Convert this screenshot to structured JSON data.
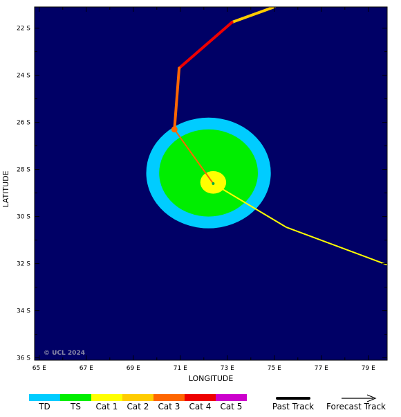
{
  "map": {
    "xlabel": "LONGITUDE",
    "ylabel": "LATITUDE",
    "copyright": "© UCL 2024",
    "background_color": "#000066",
    "lon_range": [
      64.8,
      79.8
    ],
    "lat_range": [
      -21.1,
      -36.1
    ],
    "lon_ticks": [
      {
        "value": 65,
        "label": "65 E"
      },
      {
        "value": 67,
        "label": "67 E"
      },
      {
        "value": 69,
        "label": "69 E"
      },
      {
        "value": 71,
        "label": "71 E"
      },
      {
        "value": 73,
        "label": "73 E"
      },
      {
        "value": 75,
        "label": "75 E"
      },
      {
        "value": 77,
        "label": "77 E"
      },
      {
        "value": 79,
        "label": "79 E"
      }
    ],
    "lat_ticks": [
      {
        "value": -22,
        "label": "22 S"
      },
      {
        "value": -24,
        "label": "24 S"
      },
      {
        "value": -26,
        "label": "26 S"
      },
      {
        "value": -28,
        "label": "28 S"
      },
      {
        "value": -30,
        "label": "30 S"
      },
      {
        "value": -32,
        "label": "32 S"
      },
      {
        "value": -34,
        "label": "34 S"
      },
      {
        "value": -36,
        "label": "36 S"
      }
    ]
  },
  "wind_field": {
    "center": {
      "lon": 72.2,
      "lat": -28.15
    },
    "zones": [
      {
        "category": "TD",
        "color": "#00ccff",
        "r_lon": 2.65,
        "r_lat": 2.35
      },
      {
        "category": "TS",
        "color": "#00ee00",
        "r_lon": 2.1,
        "r_lat": 1.85
      },
      {
        "category": "Cat 1",
        "color": "#ffff00",
        "r_lon": 0.55,
        "r_lat": 0.48,
        "center": {
          "lon": 72.4,
          "lat": -28.55
        }
      }
    ]
  },
  "past_track": [
    {
      "from": {
        "lon": 75.0,
        "lat": -21.1
      },
      "to": {
        "lon": 73.2,
        "lat": -21.75
      },
      "category": "Cat 2",
      "color": "#ffcc00"
    },
    {
      "from": {
        "lon": 73.2,
        "lat": -21.75
      },
      "to": {
        "lon": 70.95,
        "lat": -23.7
      },
      "category": "Cat 4",
      "color": "#ee0000"
    },
    {
      "from": {
        "lon": 70.95,
        "lat": -23.7
      },
      "to": {
        "lon": 70.75,
        "lat": -26.3
      },
      "category": "Cat 3",
      "color": "#ff6600"
    }
  ],
  "last_position": {
    "lon": 70.75,
    "lat": -26.3,
    "color": "#ff6600"
  },
  "forecast_track": [
    {
      "from": {
        "lon": 70.75,
        "lat": -26.3
      },
      "to": {
        "lon": 72.4,
        "lat": -28.6
      },
      "category": "Cat 3",
      "color": "#ff6600"
    },
    {
      "from": {
        "lon": 72.4,
        "lat": -28.6
      },
      "to": {
        "lon": 75.5,
        "lat": -30.45
      },
      "category": "Cat 1",
      "color": "#ffff00"
    },
    {
      "from": {
        "lon": 75.5,
        "lat": -30.45
      },
      "to": {
        "lon": 79.8,
        "lat": -32.05
      },
      "category": "Cat 1",
      "color": "#ffff00"
    }
  ],
  "legend": {
    "categories": [
      {
        "label": "TD",
        "color": "#00ccff"
      },
      {
        "label": "TS",
        "color": "#00ee00"
      },
      {
        "label": "Cat 1",
        "color": "#ffff00"
      },
      {
        "label": "Cat 2",
        "color": "#ffcc00"
      },
      {
        "label": "Cat 3",
        "color": "#ff6600"
      },
      {
        "label": "Cat 4",
        "color": "#ee0000"
      },
      {
        "label": "Cat 5",
        "color": "#cc00cc"
      }
    ],
    "past_track_label": "Past Track",
    "forecast_track_label": "Forecast Track"
  }
}
